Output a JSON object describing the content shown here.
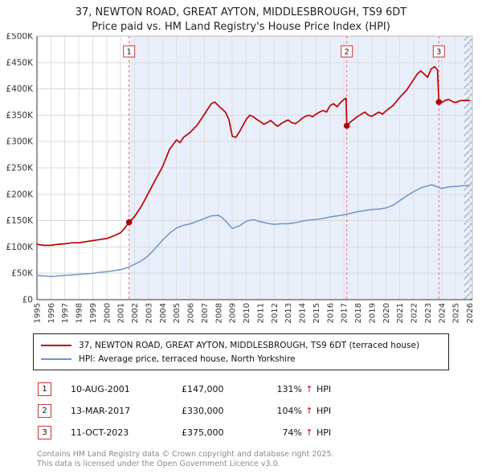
{
  "header": {
    "title": "37, NEWTON ROAD, GREAT AYTON, MIDDLESBROUGH, TS9 6DT",
    "subtitle": "Price paid vs. HM Land Registry's House Price Index (HPI)"
  },
  "legend": {
    "items": [
      {
        "label": "37, NEWTON ROAD, GREAT AYTON, MIDDLESBROUGH, TS9 6DT (terraced house)",
        "color": "#c00000"
      },
      {
        "label": "HPI: Average price, terraced house, North Yorkshire",
        "color": "#6d96c8"
      }
    ]
  },
  "footer": {
    "line1": "Contains HM Land Registry data © Crown copyright and database right 2025.",
    "line2": "This data is licensed under the Open Government Licence v3.0."
  },
  "chart_data": {
    "type": "line",
    "title": "37, NEWTON ROAD, GREAT AYTON, MIDDLESBROUGH, TS9 6DT",
    "subtitle": "Price paid vs. HM Land Registry's House Price Index (HPI)",
    "ylim": [
      0,
      500
    ],
    "xlim": [
      1995,
      2026.2
    ],
    "grid": true,
    "legend_position": "bottom",
    "yticks": [
      {
        "v": 0,
        "label": "£0"
      },
      {
        "v": 50,
        "label": "£50K"
      },
      {
        "v": 100,
        "label": "£100K"
      },
      {
        "v": 150,
        "label": "£150K"
      },
      {
        "v": 200,
        "label": "£200K"
      },
      {
        "v": 250,
        "label": "£250K"
      },
      {
        "v": 300,
        "label": "£300K"
      },
      {
        "v": 350,
        "label": "£350K"
      },
      {
        "v": 400,
        "label": "£400K"
      },
      {
        "v": 450,
        "label": "£450K"
      },
      {
        "v": 500,
        "label": "£500K"
      }
    ],
    "xticks": [
      1995,
      1996,
      1997,
      1998,
      1999,
      2000,
      2001,
      2002,
      2003,
      2004,
      2005,
      2006,
      2007,
      2008,
      2009,
      2010,
      2011,
      2012,
      2013,
      2014,
      2015,
      2016,
      2017,
      2018,
      2019,
      2020,
      2021,
      2022,
      2023,
      2024,
      2025,
      2026
    ],
    "shade": {
      "from": 2001.6,
      "to": 2025.6,
      "color": "#e9effa"
    },
    "hatch": {
      "from": 2025.6,
      "to": 2026.2
    },
    "series": [
      {
        "name": "37, NEWTON ROAD, GREAT AYTON, MIDDLESBROUGH, TS9 6DT (terraced house)",
        "color": "#c00000",
        "width": 1.7,
        "points": [
          [
            1995,
            105
          ],
          [
            1995.5,
            103
          ],
          [
            1996,
            103
          ],
          [
            1996.5,
            105
          ],
          [
            1997,
            106
          ],
          [
            1997.5,
            108
          ],
          [
            1998,
            108
          ],
          [
            1998.5,
            110
          ],
          [
            1999,
            112
          ],
          [
            1999.5,
            114
          ],
          [
            2000,
            116
          ],
          [
            2000.5,
            121
          ],
          [
            2001,
            127
          ],
          [
            2001.3,
            136
          ],
          [
            2001.6,
            147
          ],
          [
            2002,
            158
          ],
          [
            2002.5,
            178
          ],
          [
            2003,
            203
          ],
          [
            2003.5,
            228
          ],
          [
            2004,
            252
          ],
          [
            2004.5,
            285
          ],
          [
            2005,
            303
          ],
          [
            2005.25,
            298
          ],
          [
            2005.5,
            308
          ],
          [
            2006,
            318
          ],
          [
            2006.5,
            332
          ],
          [
            2007,
            352
          ],
          [
            2007.25,
            362
          ],
          [
            2007.5,
            372
          ],
          [
            2007.75,
            375
          ],
          [
            2008,
            368
          ],
          [
            2008.25,
            362
          ],
          [
            2008.5,
            356
          ],
          [
            2008.75,
            342
          ],
          [
            2009,
            310
          ],
          [
            2009.25,
            308
          ],
          [
            2009.5,
            318
          ],
          [
            2009.75,
            330
          ],
          [
            2010,
            342
          ],
          [
            2010.25,
            350
          ],
          [
            2010.5,
            347
          ],
          [
            2010.75,
            342
          ],
          [
            2011,
            338
          ],
          [
            2011.25,
            333
          ],
          [
            2011.5,
            336
          ],
          [
            2011.75,
            340
          ],
          [
            2012,
            334
          ],
          [
            2012.25,
            329
          ],
          [
            2012.5,
            334
          ],
          [
            2012.75,
            338
          ],
          [
            2013,
            341
          ],
          [
            2013.25,
            336
          ],
          [
            2013.5,
            334
          ],
          [
            2013.75,
            338
          ],
          [
            2014,
            344
          ],
          [
            2014.25,
            348
          ],
          [
            2014.5,
            350
          ],
          [
            2014.75,
            347
          ],
          [
            2015,
            352
          ],
          [
            2015.25,
            356
          ],
          [
            2015.5,
            359
          ],
          [
            2015.75,
            356
          ],
          [
            2016,
            368
          ],
          [
            2016.25,
            372
          ],
          [
            2016.5,
            366
          ],
          [
            2016.75,
            374
          ],
          [
            2017,
            380
          ],
          [
            2017.15,
            382
          ],
          [
            2017.2,
            330
          ],
          [
            2017.5,
            338
          ],
          [
            2018,
            348
          ],
          [
            2018.25,
            352
          ],
          [
            2018.5,
            356
          ],
          [
            2018.75,
            350
          ],
          [
            2019,
            348
          ],
          [
            2019.25,
            352
          ],
          [
            2019.5,
            356
          ],
          [
            2019.75,
            352
          ],
          [
            2020,
            358
          ],
          [
            2020.5,
            368
          ],
          [
            2021,
            384
          ],
          [
            2021.5,
            398
          ],
          [
            2022,
            418
          ],
          [
            2022.25,
            428
          ],
          [
            2022.5,
            434
          ],
          [
            2022.75,
            428
          ],
          [
            2023,
            422
          ],
          [
            2023.25,
            438
          ],
          [
            2023.5,
            442
          ],
          [
            2023.7,
            436
          ],
          [
            2023.8,
            375
          ],
          [
            2024,
            374
          ],
          [
            2024.25,
            378
          ],
          [
            2024.5,
            380
          ],
          [
            2024.75,
            376
          ],
          [
            2025,
            374
          ],
          [
            2025.25,
            377
          ],
          [
            2025.5,
            378
          ],
          [
            2026,
            378
          ]
        ]
      },
      {
        "name": "HPI: Average price, terraced house, North Yorkshire",
        "color": "#6d96c8",
        "width": 1.5,
        "points": [
          [
            1995,
            46
          ],
          [
            1995.5,
            45
          ],
          [
            1996,
            44
          ],
          [
            1996.5,
            45
          ],
          [
            1997,
            46
          ],
          [
            1997.5,
            47
          ],
          [
            1998,
            48
          ],
          [
            1998.5,
            49
          ],
          [
            1999,
            50
          ],
          [
            1999.5,
            52
          ],
          [
            2000,
            53
          ],
          [
            2000.5,
            55
          ],
          [
            2001,
            57
          ],
          [
            2001.5,
            61
          ],
          [
            2002,
            67
          ],
          [
            2002.5,
            74
          ],
          [
            2003,
            84
          ],
          [
            2003.5,
            98
          ],
          [
            2004,
            113
          ],
          [
            2004.5,
            126
          ],
          [
            2005,
            136
          ],
          [
            2005.5,
            141
          ],
          [
            2006,
            144
          ],
          [
            2006.5,
            149
          ],
          [
            2007,
            154
          ],
          [
            2007.5,
            159
          ],
          [
            2008,
            160
          ],
          [
            2008.25,
            156
          ],
          [
            2008.5,
            150
          ],
          [
            2009,
            135
          ],
          [
            2009.5,
            140
          ],
          [
            2010,
            149
          ],
          [
            2010.5,
            152
          ],
          [
            2011,
            148
          ],
          [
            2011.5,
            145
          ],
          [
            2012,
            143
          ],
          [
            2012.5,
            144
          ],
          [
            2013,
            144
          ],
          [
            2013.5,
            146
          ],
          [
            2014,
            149
          ],
          [
            2014.5,
            151
          ],
          [
            2015,
            152
          ],
          [
            2015.5,
            154
          ],
          [
            2016,
            157
          ],
          [
            2016.5,
            159
          ],
          [
            2017,
            161
          ],
          [
            2017.5,
            164
          ],
          [
            2018,
            167
          ],
          [
            2018.5,
            169
          ],
          [
            2019,
            171
          ],
          [
            2019.5,
            172
          ],
          [
            2020,
            174
          ],
          [
            2020.5,
            179
          ],
          [
            2021,
            188
          ],
          [
            2021.5,
            197
          ],
          [
            2022,
            205
          ],
          [
            2022.5,
            212
          ],
          [
            2023,
            216
          ],
          [
            2023.3,
            218
          ],
          [
            2023.6,
            215
          ],
          [
            2024,
            211
          ],
          [
            2024.5,
            214
          ],
          [
            2025,
            215
          ],
          [
            2025.5,
            216
          ],
          [
            2026,
            217
          ]
        ]
      }
    ],
    "sales": [
      {
        "n": "1",
        "x": 2001.6,
        "value": 147,
        "date": "10-AUG-2001",
        "price_label": "£147,000",
        "pct": "131%",
        "arrow": "↑",
        "suffix": "HPI"
      },
      {
        "n": "2",
        "x": 2017.2,
        "value": 330,
        "date": "13-MAR-2017",
        "price_label": "£330,000",
        "pct": "104%",
        "arrow": "↑",
        "suffix": "HPI"
      },
      {
        "n": "3",
        "x": 2023.8,
        "value": 375,
        "date": "11-OCT-2023",
        "price_label": "£375,000",
        "pct": "74%",
        "arrow": "↑",
        "suffix": "HPI"
      }
    ],
    "colors": {
      "price_line": "#c00000",
      "hpi_line": "#6d96c8",
      "sale_dot": "#b00000",
      "dashed_line": "#e57373",
      "grid": "#d9d9d9",
      "shade": "#e9effa"
    }
  }
}
